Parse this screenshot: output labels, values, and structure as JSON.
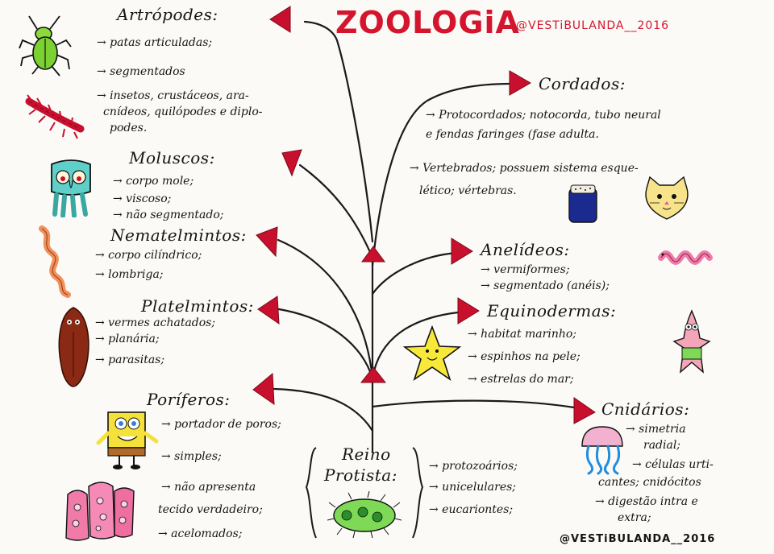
{
  "title": "ZOOLOGiA",
  "handle_top": "@VESTiBULANDA__2016",
  "handle_bottom": "@VESTiBULANDA__2016",
  "artropodes": {
    "heading": "Artrópodes:",
    "items": [
      "→ patas articuladas;",
      "→ segmentados",
      "→ insetos, crustáceos, ara-",
      "cnídeos, quilópodes e diplo-",
      "podes."
    ]
  },
  "moluscos": {
    "heading": "Moluscos:",
    "items": [
      "→ corpo mole;",
      "→ viscoso;",
      "→ não segmentado;"
    ]
  },
  "nematelmintos": {
    "heading": "Nematelmintos:",
    "items": [
      "→ corpo cilíndrico;",
      "→ lombriga;"
    ]
  },
  "platelmintos": {
    "heading": "Platelmintos:",
    "items": [
      "→ vermes achatados;",
      "→ planária;",
      "→ parasitas;"
    ]
  },
  "poriferos": {
    "heading": "Poríferos:",
    "items": [
      "→ portador de poros;",
      "→ simples;",
      "→ não apresenta",
      "tecido verdadeiro;",
      "→ acelomados;"
    ]
  },
  "reino": {
    "heading_1": "Reino",
    "heading_2": "Protista:",
    "items": [
      "→ protozoários;",
      "→ unicelulares;",
      "→ eucariontes;"
    ]
  },
  "cordados": {
    "heading": "Cordados:",
    "items": [
      "→ Protocordados; notocorda, tubo neural",
      "e fendas faringes (fase adulta.",
      "→ Vertebrados; possuem sistema esque-",
      "lético; vértebras."
    ]
  },
  "anelideos": {
    "heading": "Anelídeos:",
    "items": [
      "→ vermiformes;",
      "→ segmentado (anéis);"
    ]
  },
  "equinodermas": {
    "heading": "Equinodermas:",
    "items": [
      "→ habitat marinho;",
      "→ espinhos na pele;",
      "→ estrelas do mar;"
    ]
  },
  "cnidarios": {
    "heading": "Cnidários:",
    "items": [
      "→ simetria",
      "radial;",
      "→ células urti-",
      "cantes; cnidócitos",
      "→ digestão intra e",
      "extra;"
    ]
  },
  "colors": {
    "title": "#d4152d",
    "arrow": "#c8102e",
    "branch": "#1a1a1a"
  }
}
